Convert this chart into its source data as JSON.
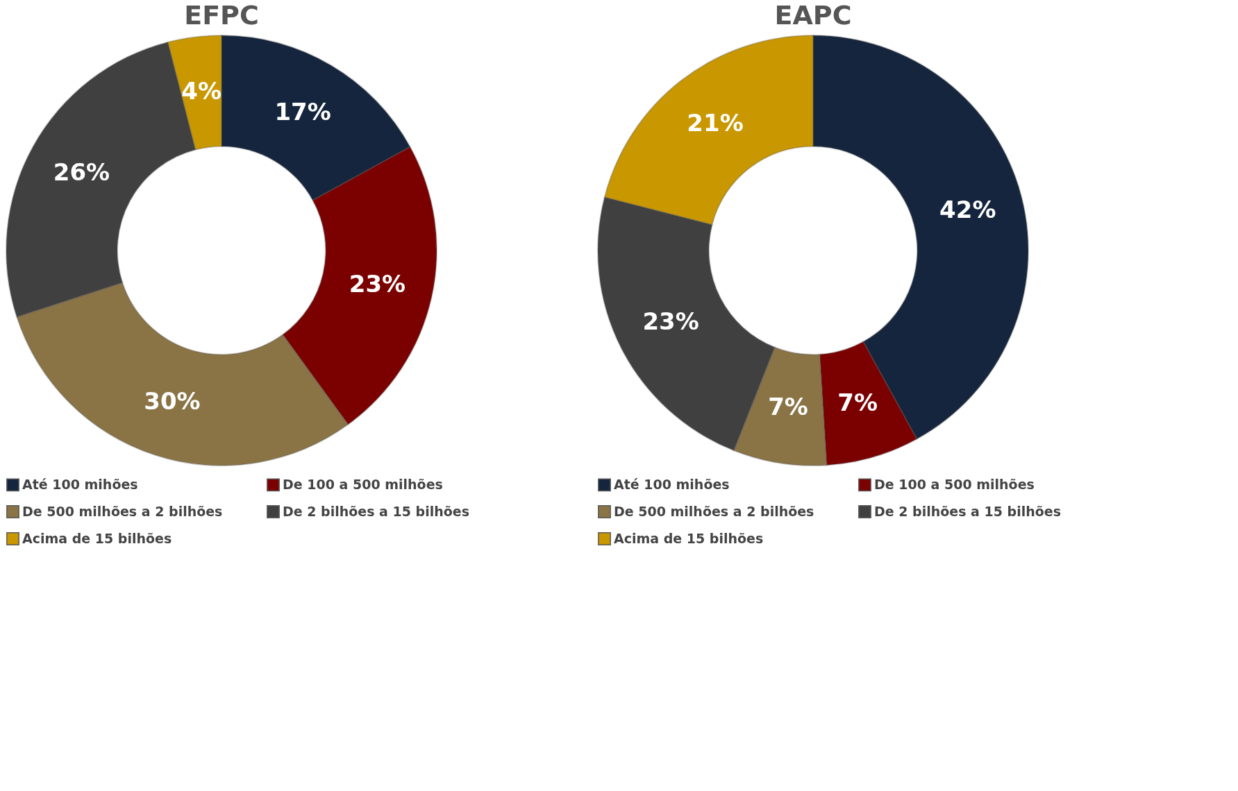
{
  "chart_data": [
    {
      "type": "donut",
      "title": "EFPC",
      "categories": [
        "Até 100 mihões",
        "De 100 a 500 milhões",
        "De 500 milhões a 2 bilhões",
        "De 2 bilhões a 15 bilhões",
        "Acima de 15 bilhões"
      ],
      "values": [
        17,
        23,
        30,
        26,
        4
      ],
      "colors": [
        "#14253d",
        "#7b0000",
        "#8a7446",
        "#404040",
        "#c99700"
      ],
      "value_labels": [
        "17%",
        "23%",
        "30%",
        "26%",
        "4%"
      ],
      "legend": "bottom"
    },
    {
      "type": "donut",
      "title": "EAPC",
      "categories": [
        "Até 100 mihões",
        "De 100 a 500 milhões",
        "De 500 milhões a 2 bilhões",
        "De 2 bilhões a 15 bilhões",
        "Acima de 15 bilhões"
      ],
      "values": [
        42,
        7,
        7,
        23,
        21
      ],
      "colors": [
        "#14253d",
        "#7b0000",
        "#8a7446",
        "#404040",
        "#c99700"
      ],
      "value_labels": [
        "42%",
        "7%",
        "7%",
        "23%",
        "21%"
      ],
      "legend": "bottom"
    }
  ]
}
